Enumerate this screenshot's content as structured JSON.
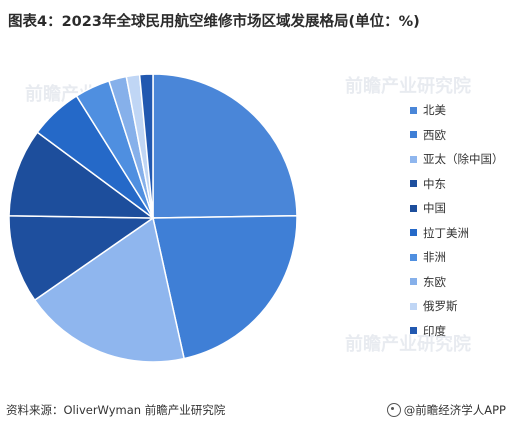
{
  "title": "图表4：2023年全球民用航空维修市场区域发展格局(单位：%)",
  "source": "资料来源：OliverWyman 前瞻产业研究院",
  "credit": "@前瞻经济学人APP",
  "watermark": "前瞻产业研究院",
  "chart_data": {
    "type": "pie",
    "start_angle_deg": 0,
    "direction": "clockwise",
    "legend_position": "right",
    "categories": [
      "北美",
      "西欧",
      "亚太（除中国）",
      "中东",
      "中国",
      "拉丁美洲",
      "非洲",
      "东欧",
      "俄罗斯",
      "印度"
    ],
    "values": [
      25,
      22,
      19,
      10,
      10,
      6,
      4,
      2,
      1.5,
      1.5
    ],
    "colors": [
      "#4a86d8",
      "#3f7fd6",
      "#8fb6ee",
      "#1e4f9e",
      "#1d4e9c",
      "#2569c8",
      "#4f8fe0",
      "#86b0ea",
      "#c0d6f5",
      "#2158b0"
    ]
  }
}
